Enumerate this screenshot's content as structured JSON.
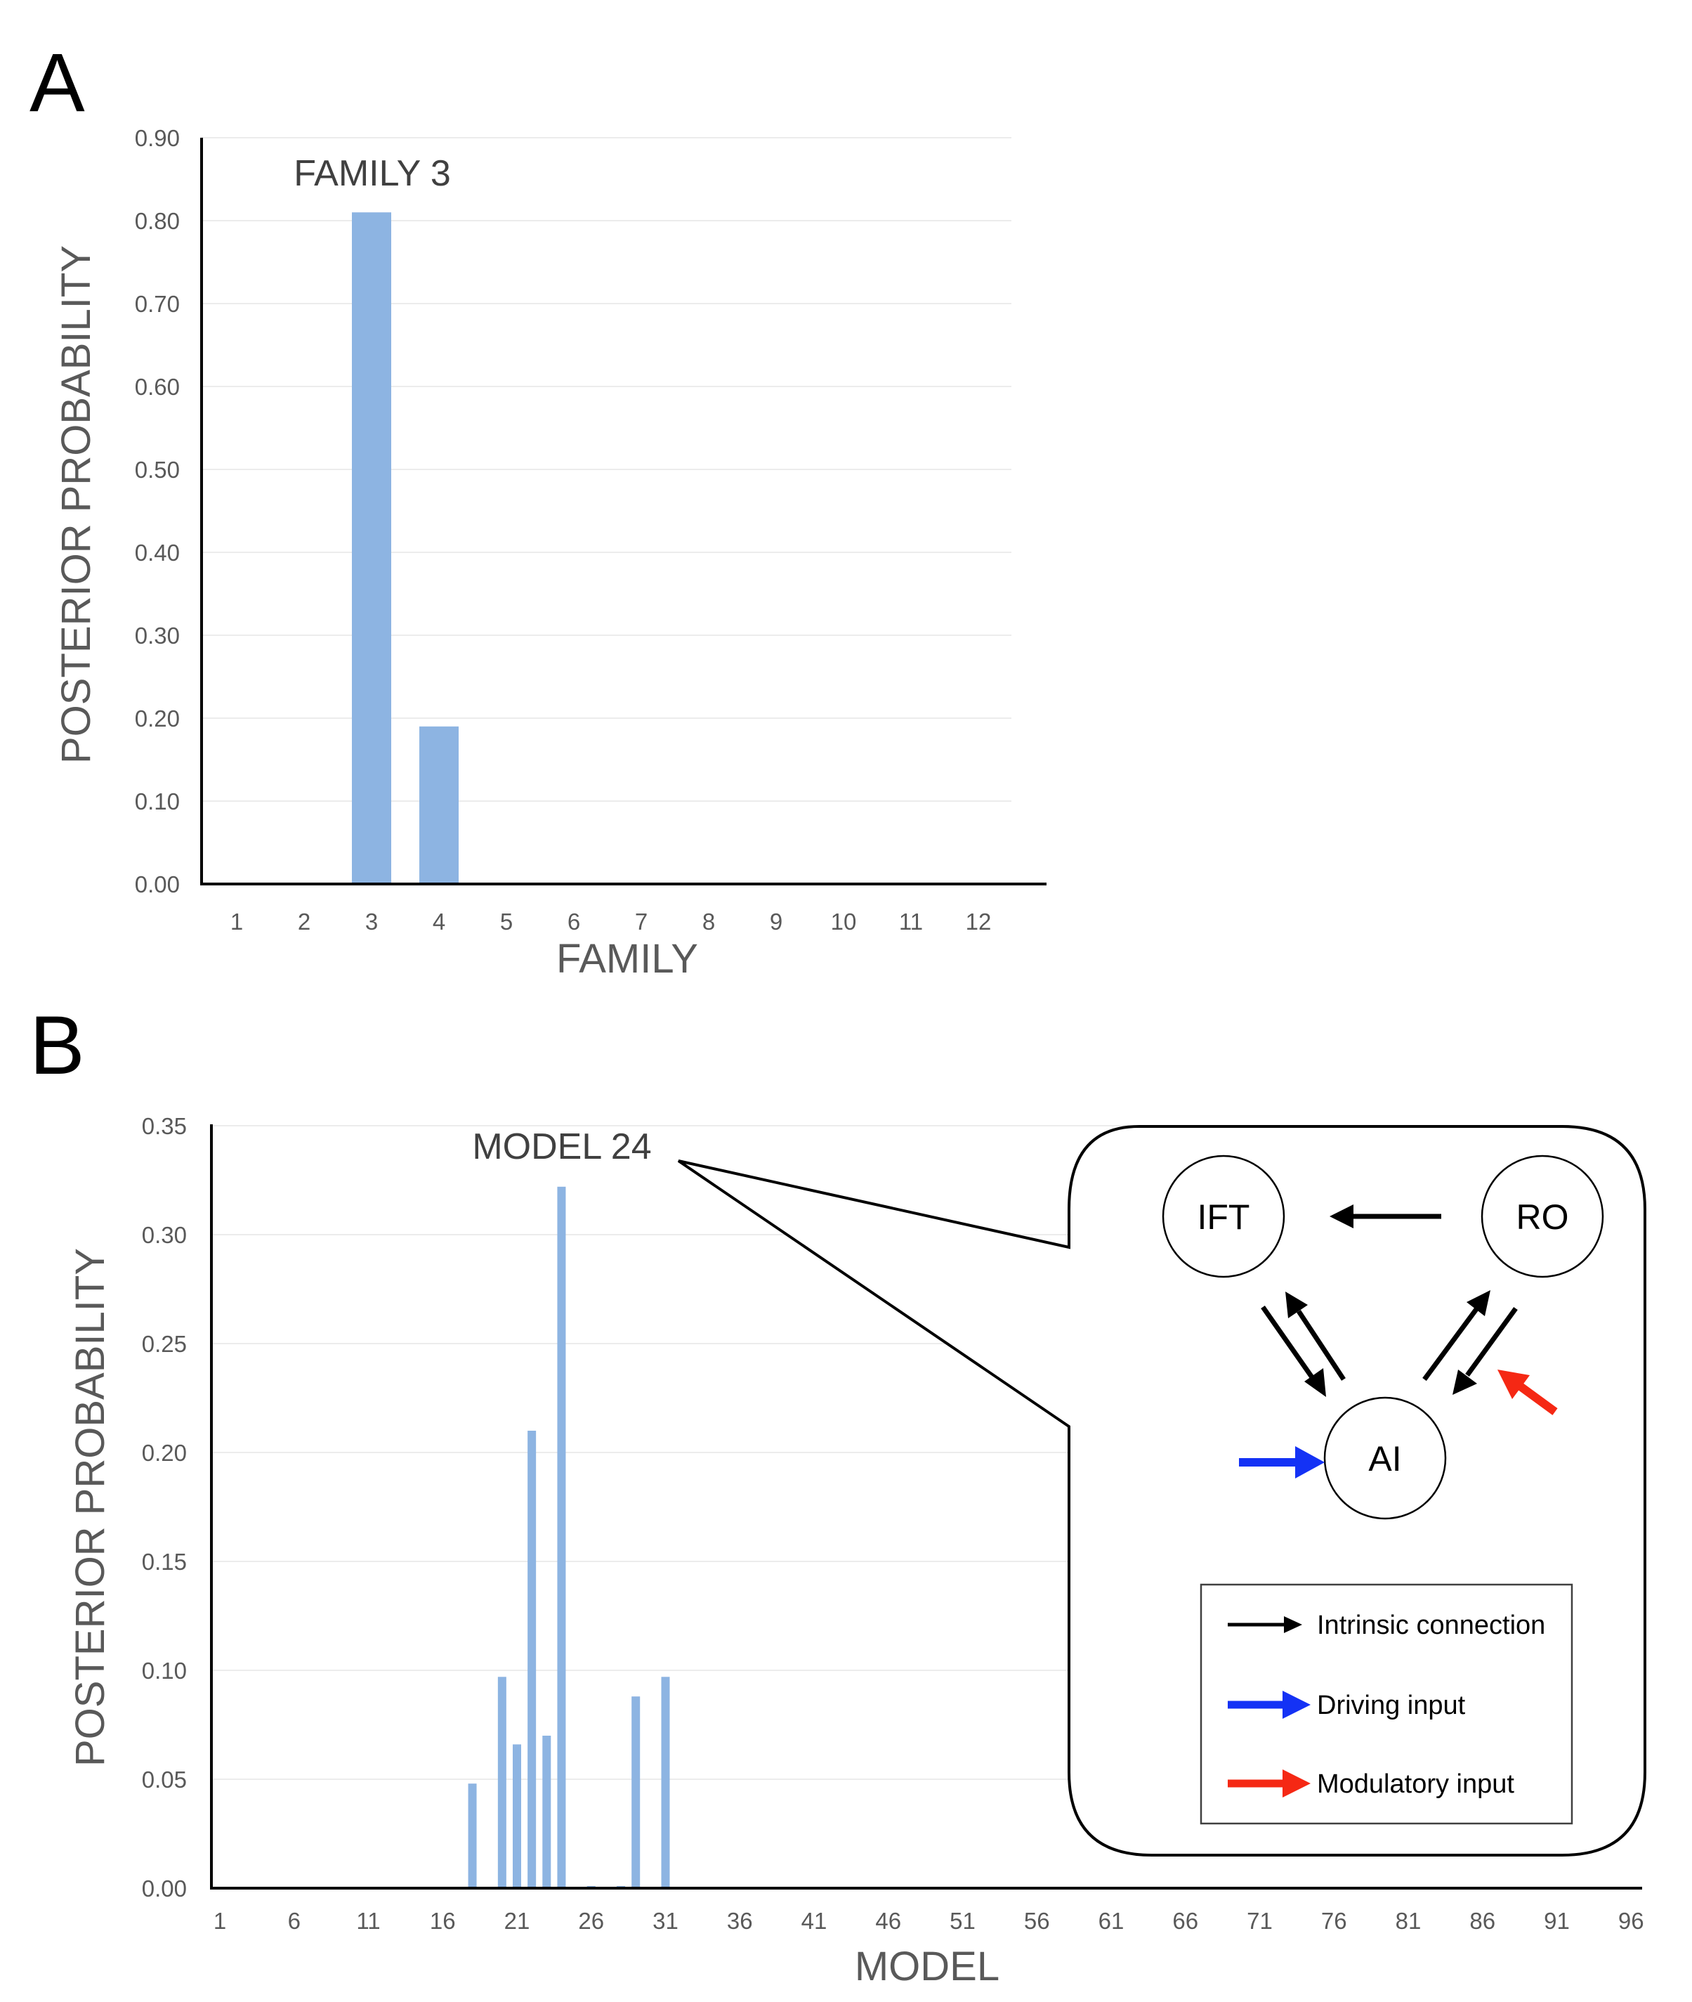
{
  "panels": {
    "a": {
      "label": "A"
    },
    "b": {
      "label": "B"
    }
  },
  "chart_data": [
    {
      "id": "A",
      "type": "bar",
      "title": "",
      "xlabel": "FAMILY",
      "ylabel": "POSTERIOR PROBABILITY",
      "categories": [
        "1",
        "2",
        "3",
        "4",
        "5",
        "6",
        "7",
        "8",
        "9",
        "10",
        "11",
        "12"
      ],
      "values": [
        0,
        0,
        0.81,
        0.19,
        0,
        0,
        0,
        0,
        0,
        0,
        0,
        0
      ],
      "ylim": [
        0,
        0.9
      ],
      "yticks": [
        "0.00",
        "0.10",
        "0.20",
        "0.30",
        "0.40",
        "0.50",
        "0.60",
        "0.70",
        "0.80",
        "0.90"
      ],
      "grid": true,
      "bar_color": "#8DB4E2",
      "annotation": {
        "text": "FAMILY 3",
        "category": "3"
      }
    },
    {
      "id": "B",
      "type": "bar",
      "title": "",
      "xlabel": "MODEL",
      "ylabel": "POSTERIOR PROBABILITY",
      "x_range": [
        1,
        96
      ],
      "xticks": [
        "1",
        "6",
        "11",
        "16",
        "21",
        "26",
        "31",
        "36",
        "41",
        "46",
        "51",
        "56",
        "61",
        "66",
        "71",
        "76",
        "81",
        "86",
        "91",
        "96"
      ],
      "points": [
        {
          "x": 18,
          "y": 0.048
        },
        {
          "x": 20,
          "y": 0.097
        },
        {
          "x": 21,
          "y": 0.066
        },
        {
          "x": 22,
          "y": 0.21
        },
        {
          "x": 23,
          "y": 0.07
        },
        {
          "x": 24,
          "y": 0.322
        },
        {
          "x": 26,
          "y": 0.001
        },
        {
          "x": 28,
          "y": 0.001
        },
        {
          "x": 29,
          "y": 0.088
        },
        {
          "x": 31,
          "y": 0.097
        }
      ],
      "ylim": [
        0,
        0.35
      ],
      "yticks": [
        "0.00",
        "0.05",
        "0.10",
        "0.15",
        "0.20",
        "0.25",
        "0.30",
        "0.35"
      ],
      "grid": true,
      "bar_color": "#8DB4E2",
      "annotation": {
        "text": "MODEL 24",
        "model": 24
      }
    }
  ],
  "diagram": {
    "nodes": {
      "ift": "IFT",
      "ro": "RO",
      "ai": "AI"
    },
    "legend": {
      "intrinsic": "Intrinsic connection",
      "driving": "Driving input",
      "modulatory": "Modulatory input"
    },
    "colors": {
      "intrinsic": "#000000",
      "driving": "#1432F5",
      "modulatory": "#F52814"
    }
  }
}
